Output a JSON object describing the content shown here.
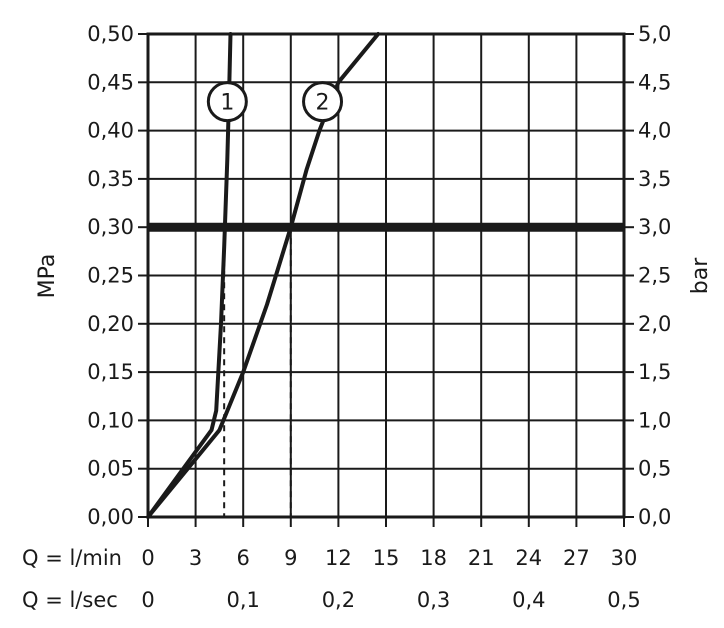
{
  "chart_data": {
    "type": "line",
    "xlabel_primary": "Q = l/min",
    "xlabel_secondary": "Q = l/sec",
    "ylabel_left": "MPa",
    "ylabel_right": "bar",
    "xlim": [
      0,
      30
    ],
    "ylim": [
      0,
      0.5
    ],
    "ylim_right": [
      0,
      5.0
    ],
    "x_ticks": [
      "0",
      "3",
      "6",
      "9",
      "12",
      "15",
      "18",
      "21",
      "24",
      "27",
      "30"
    ],
    "x_ticks_secondary": [
      {
        "x": 0,
        "label": "0"
      },
      {
        "x": 6,
        "label": "0,1"
      },
      {
        "x": 12,
        "label": "0,2"
      },
      {
        "x": 18,
        "label": "0,3"
      },
      {
        "x": 24,
        "label": "0,4"
      },
      {
        "x": 30,
        "label": "0,5"
      }
    ],
    "y_ticks_left": [
      "0,00",
      "0,05",
      "0,10",
      "0,15",
      "0,20",
      "0,25",
      "0,30",
      "0,35",
      "0,40",
      "0,45",
      "0,50"
    ],
    "y_ticks_right": [
      "0,0",
      "0,5",
      "1,0",
      "1,5",
      "2,0",
      "2,5",
      "3,0",
      "3,5",
      "4,0",
      "4,5",
      "5,0"
    ],
    "grid": true,
    "reference_line": {
      "y": 0.3
    },
    "series": [
      {
        "name": "1",
        "label_at": {
          "x": 5.0,
          "y": 0.43
        },
        "x": [
          0,
          2.0,
          4.0,
          4.3,
          4.6,
          4.8,
          5.0,
          5.1,
          5.2
        ],
        "y": [
          0,
          0.045,
          0.09,
          0.11,
          0.2,
          0.28,
          0.37,
          0.43,
          0.5
        ]
      },
      {
        "name": "2",
        "label_at": {
          "x": 11.0,
          "y": 0.43
        },
        "x": [
          0,
          2.5,
          4.5,
          6.0,
          7.5,
          9.0,
          10.0,
          10.8,
          12.0,
          14.5
        ],
        "y": [
          0,
          0.05,
          0.09,
          0.15,
          0.22,
          0.3,
          0.36,
          0.4,
          0.45,
          0.5
        ]
      }
    ],
    "drop_lines": [
      {
        "series": "1",
        "x": 4.8,
        "y": 0.3
      },
      {
        "series": "2",
        "x": 9.0,
        "y": 0.3
      }
    ]
  }
}
